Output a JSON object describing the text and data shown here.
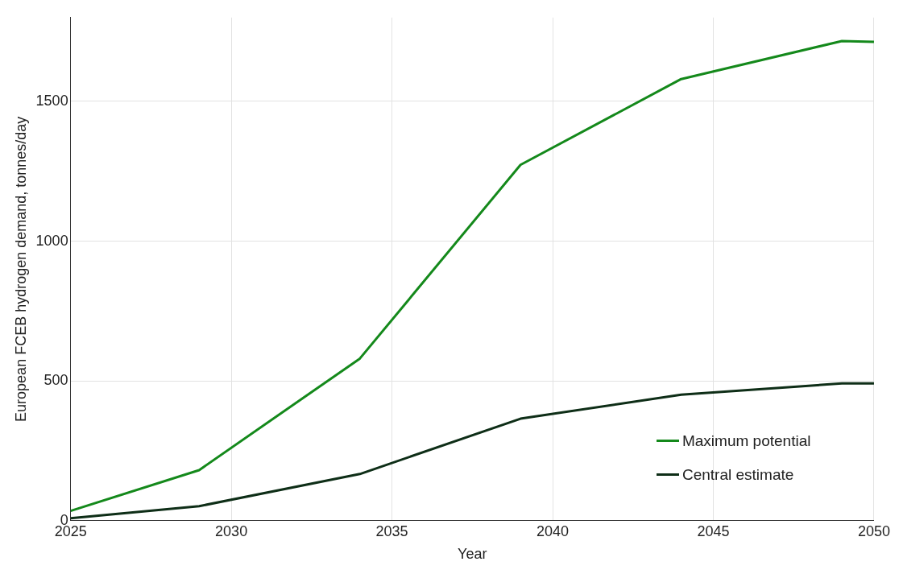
{
  "chart_data": {
    "type": "line",
    "xlabel": "Year",
    "ylabel": "European FCEB hydrogen demand, tonnes/day",
    "xlim": [
      2025,
      2050
    ],
    "xticks": [
      2025,
      2030,
      2035,
      2040,
      2045,
      2050
    ],
    "ylim": [
      0,
      1800
    ],
    "yticks": [
      0,
      500,
      1000,
      1500
    ],
    "grid": true,
    "legend": "bottom right",
    "marker": "none",
    "line_style": "solid",
    "series": [
      {
        "name": "Maximum potential",
        "color": "#14891b",
        "x": [
          2025,
          2029,
          2034,
          2039,
          2044,
          2049,
          2050
        ],
        "values": [
          35,
          181,
          580,
          1273,
          1580,
          1716,
          1713
        ]
      },
      {
        "name": "Central estimate",
        "color": "#0e2e17",
        "x": [
          2025,
          2029,
          2034,
          2039,
          2044,
          2049,
          2050
        ],
        "values": [
          9,
          52,
          167,
          365,
          451,
          491,
          491
        ]
      }
    ]
  }
}
